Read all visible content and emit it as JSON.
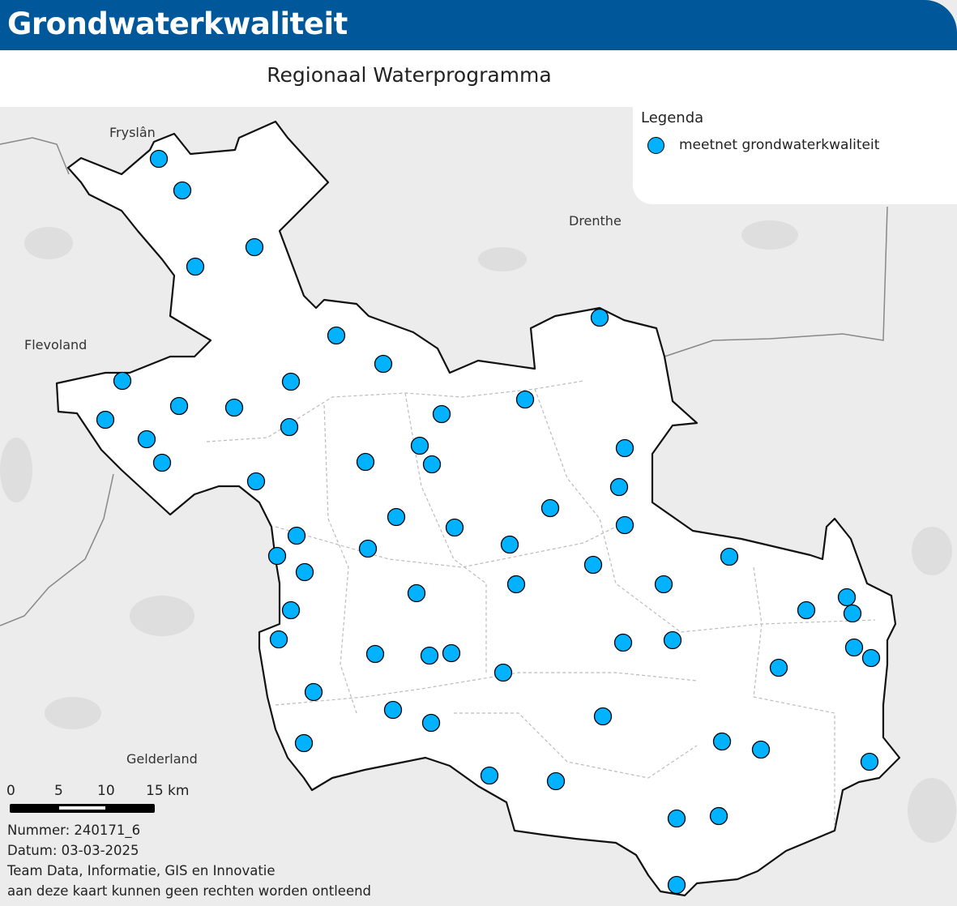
{
  "header": {
    "title": "Grondwaterkwaliteit",
    "subtitle": "Regionaal Waterprogramma"
  },
  "legend": {
    "title": "Legenda",
    "items": [
      {
        "label": "meetnet grondwaterkwaliteit",
        "symbol": "circle",
        "color": "#00b2ff"
      }
    ]
  },
  "regions": {
    "fryslan": "Fryslân",
    "drenthe": "Drenthe",
    "flevoland": "Flevoland",
    "gelderland": "Gelderland"
  },
  "scale": {
    "ticks": [
      "0",
      "5",
      "10",
      "15 km"
    ]
  },
  "meta": {
    "number": "Nummer: 240171_6",
    "date": "Datum: 03-03-2025",
    "team": "Team Data, Informatie, GIS en Innovatie",
    "disclaimer": "aan deze kaart kunnen geen rechten worden ontleend"
  },
  "colors": {
    "header": "#00589a",
    "point": "#00b2ff",
    "background": "#ececec",
    "province": "#ffffff"
  }
}
